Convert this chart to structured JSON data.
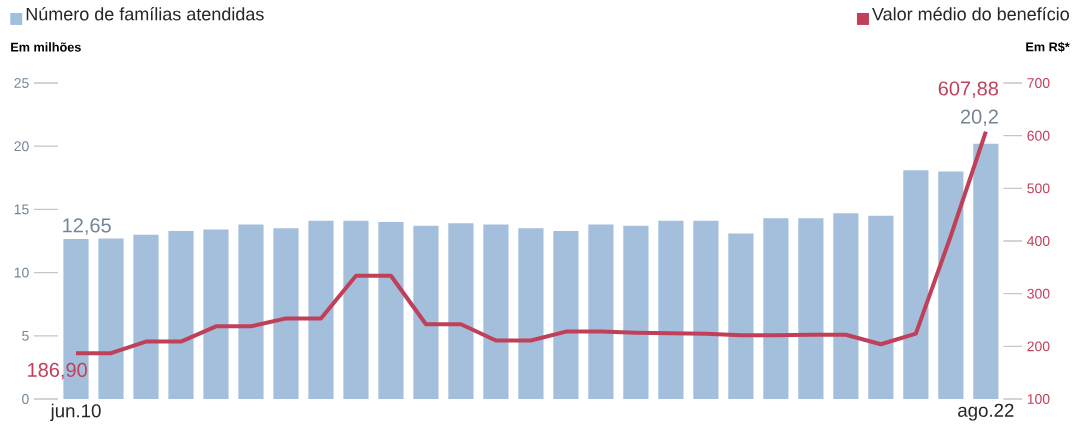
{
  "chart_data": {
    "type": "bar",
    "categories": [
      "jun.10",
      null,
      null,
      null,
      null,
      null,
      null,
      null,
      null,
      null,
      null,
      null,
      null,
      null,
      null,
      null,
      null,
      null,
      null,
      null,
      null,
      null,
      null,
      null,
      null,
      null,
      "ago.22"
    ],
    "series": [
      {
        "name": "Número de famílias atendidas",
        "color": "#a3bfdb",
        "values": [
          12.65,
          12.7,
          13.0,
          13.3,
          13.4,
          13.8,
          13.5,
          14.1,
          14.1,
          14.0,
          13.7,
          13.9,
          13.8,
          13.5,
          13.3,
          13.8,
          13.7,
          14.1,
          14.1,
          13.1,
          14.3,
          14.3,
          14.7,
          14.5,
          18.1,
          18.0,
          20.2
        ],
        "value_labels": [
          "12,65",
          null,
          null,
          null,
          null,
          null,
          null,
          null,
          null,
          null,
          null,
          null,
          null,
          null,
          null,
          null,
          null,
          null,
          null,
          null,
          null,
          null,
          null,
          null,
          null,
          null,
          "20,2"
        ]
      },
      {
        "name": "Valor médio do benefício",
        "type": "line",
        "axis": "y2",
        "color": "#c0405a",
        "values": [
          186.9,
          187,
          209,
          209,
          238,
          238,
          253,
          253,
          334,
          334,
          242,
          242,
          211,
          211,
          228,
          228,
          226,
          225,
          224,
          221,
          221,
          222,
          222,
          204,
          224,
          410,
          607.88
        ],
        "value_labels": [
          "186,90",
          null,
          null,
          null,
          null,
          null,
          null,
          null,
          null,
          null,
          null,
          null,
          null,
          null,
          null,
          null,
          null,
          null,
          null,
          null,
          null,
          null,
          null,
          null,
          null,
          null,
          "607,88"
        ]
      }
    ],
    "ylabel": "Em milhões",
    "y2label": "Em R$*",
    "ylim": [
      0,
      25
    ],
    "yticks": [
      0,
      5,
      10,
      15,
      20,
      25
    ],
    "y2lim": [
      100,
      700
    ],
    "y2ticks": [
      100,
      200,
      300,
      400,
      500,
      600,
      700
    ],
    "legend": "top",
    "grid": false
  }
}
